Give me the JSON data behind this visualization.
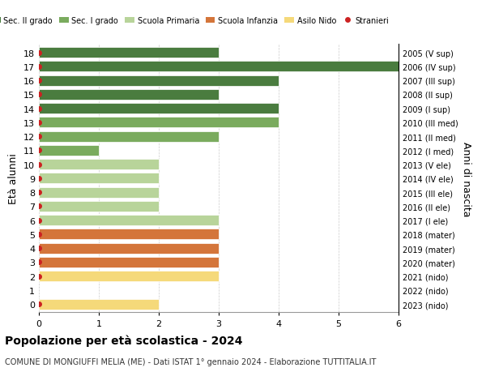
{
  "ages": [
    18,
    17,
    16,
    15,
    14,
    13,
    12,
    11,
    10,
    9,
    8,
    7,
    6,
    5,
    4,
    3,
    2,
    1,
    0
  ],
  "right_labels": [
    "2005 (V sup)",
    "2006 (IV sup)",
    "2007 (III sup)",
    "2008 (II sup)",
    "2009 (I sup)",
    "2010 (III med)",
    "2011 (II med)",
    "2012 (I med)",
    "2013 (V ele)",
    "2014 (IV ele)",
    "2015 (III ele)",
    "2016 (II ele)",
    "2017 (I ele)",
    "2018 (mater)",
    "2019 (mater)",
    "2020 (mater)",
    "2021 (nido)",
    "2022 (nido)",
    "2023 (nido)"
  ],
  "bar_values": [
    3,
    6,
    4,
    3,
    4,
    4,
    3,
    1,
    2,
    2,
    2,
    2,
    3,
    3,
    3,
    3,
    3,
    0,
    2
  ],
  "bar_colors": [
    "#4a7c3f",
    "#4a7c3f",
    "#4a7c3f",
    "#4a7c3f",
    "#4a7c3f",
    "#7aab5e",
    "#7aab5e",
    "#7aab5e",
    "#b8d49a",
    "#b8d49a",
    "#b8d49a",
    "#b8d49a",
    "#b8d49a",
    "#d4753a",
    "#d4753a",
    "#d4753a",
    "#f5d97a",
    "#f5d97a",
    "#f5d97a"
  ],
  "stranieri_dots": [
    18,
    17,
    16,
    15,
    14,
    13,
    12,
    11,
    10,
    9,
    8,
    7,
    6,
    5,
    4,
    3,
    2,
    0
  ],
  "legend_labels": [
    "Sec. II grado",
    "Sec. I grado",
    "Scuola Primaria",
    "Scuola Infanzia",
    "Asilo Nido",
    "Stranieri"
  ],
  "legend_colors": [
    "#4a7c3f",
    "#7aab5e",
    "#b8d49a",
    "#d4753a",
    "#f5d97a",
    "#cc2222"
  ],
  "xlabel_label": "",
  "ylabel_label": "Età alunni",
  "right_ylabel": "Anni di nascita",
  "title": "Popolazione per età scolastica - 2024",
  "subtitle": "COMUNE DI MONGIUFFI MELIA (ME) - Dati ISTAT 1° gennaio 2024 - Elaborazione TUTTITALIA.IT",
  "xlim": [
    0,
    6
  ],
  "background_color": "#ffffff",
  "grid_color": "#cccccc"
}
